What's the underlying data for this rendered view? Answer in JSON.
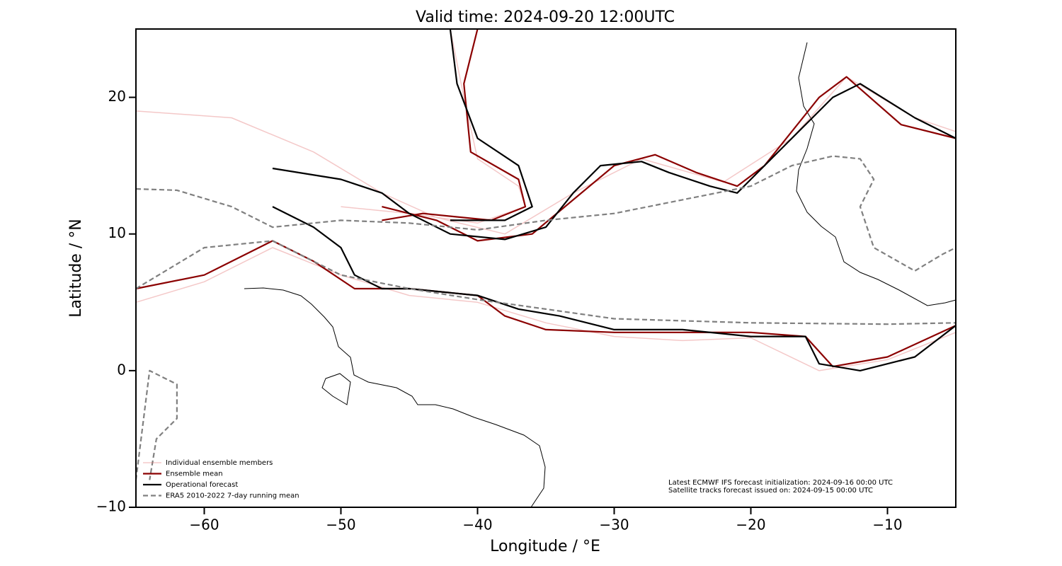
{
  "chart_data": {
    "type": "contour-map",
    "title": "Valid time: 2024-09-20 12:00UTC",
    "xlabel": "Longitude / °E",
    "ylabel": "Latitude / °N",
    "xlim": [
      -65,
      -5
    ],
    "ylim": [
      -10,
      25
    ],
    "xticks": [
      {
        "value": -60,
        "label": "−60"
      },
      {
        "value": -50,
        "label": "−50"
      },
      {
        "value": -40,
        "label": "−40"
      },
      {
        "value": -30,
        "label": "−30"
      },
      {
        "value": -20,
        "label": "−20"
      },
      {
        "value": -10,
        "label": "−10"
      }
    ],
    "yticks": [
      {
        "value": -10,
        "label": "−10"
      },
      0,
      10,
      20
    ],
    "legend_position": "lower left",
    "series": [
      {
        "name": "Individual ensemble members",
        "color": "#e06060",
        "style": "thin",
        "x": [
          -65,
          -60,
          -55,
          -50,
          -45,
          -40,
          -35,
          -30,
          -25,
          -20,
          -15,
          -10,
          -5,
          null,
          -65,
          -58,
          -52,
          -47,
          -43,
          -38,
          -33,
          -28,
          -22,
          -17,
          -13,
          -8,
          -5,
          null,
          -42,
          -41,
          -40,
          -37,
          -36.5,
          -40,
          -45,
          -50
        ],
        "y": [
          5,
          6.5,
          9,
          7,
          5.5,
          5,
          3.5,
          2.5,
          2.2,
          2.4,
          0,
          0.8,
          2.8,
          null,
          19,
          18.5,
          16,
          13,
          11.2,
          10,
          13,
          15.5,
          13.8,
          17,
          21.5,
          18.5,
          17.5,
          null,
          25,
          20,
          15.5,
          13.5,
          12,
          10.8,
          11.5,
          12
        ]
      },
      {
        "name": "Ensemble mean",
        "color": "#8b0000",
        "style": "solid",
        "x": [
          -65,
          -60,
          -55,
          -52,
          -49,
          -45,
          -40,
          -38,
          -35,
          -30,
          -25,
          -20,
          -16,
          -14,
          -10,
          -5,
          null,
          -47,
          -43,
          -40,
          -36,
          -33,
          -30,
          -27,
          -24,
          -21,
          -19,
          -15,
          -13,
          -9,
          -5,
          null,
          -40,
          -41,
          -40.5,
          -37,
          -36.5,
          -39,
          -44,
          -47
        ],
        "y": [
          6,
          7,
          9.5,
          8,
          6,
          6,
          5.5,
          4,
          3,
          2.8,
          2.8,
          2.8,
          2.5,
          0.3,
          1,
          3.3,
          null,
          12,
          11,
          9.5,
          10,
          12.5,
          15,
          15.8,
          14.5,
          13.5,
          15,
          20,
          21.5,
          18,
          17,
          null,
          25,
          21,
          16,
          14,
          12,
          11,
          11.5,
          11
        ]
      },
      {
        "name": "Operational forecast",
        "color": "#000000",
        "style": "solid",
        "x": [
          -55,
          -52,
          -50,
          -49,
          -47,
          -45,
          -40,
          -37,
          -34,
          -30,
          -25,
          -20,
          -16,
          -15,
          -12,
          -8,
          -5,
          null,
          -55,
          -50,
          -47,
          -45,
          -42,
          -38,
          -35,
          -33,
          -31,
          -28,
          -26,
          -23,
          -21,
          -19,
          -16,
          -14,
          -12,
          -8,
          -5,
          null,
          -42,
          -41.5,
          -40,
          -37,
          -36,
          -38,
          -42
        ],
        "y": [
          12,
          10.5,
          9,
          7,
          6,
          6,
          5.5,
          4.5,
          4,
          3,
          3,
          2.5,
          2.5,
          0.5,
          0,
          1,
          3.3,
          null,
          14.8,
          14,
          13,
          11.5,
          10,
          9.6,
          10.5,
          13,
          15,
          15.3,
          14.5,
          13.5,
          13,
          15,
          18,
          20,
          21,
          18.5,
          17,
          null,
          25,
          21,
          17,
          15,
          12,
          11,
          11
        ]
      },
      {
        "name": "ERA5 2010-2022 7-day running mean",
        "color": "#808080",
        "style": "dashed",
        "x": [
          -65,
          -62,
          -58,
          -55,
          -50,
          -45,
          -40,
          -35,
          -30,
          -25,
          -20,
          -17,
          -14,
          -12,
          -11,
          -12,
          -11,
          -8,
          -6,
          -5,
          null,
          -65,
          -60,
          -55,
          -50,
          -45,
          -40,
          -35,
          -30,
          -20,
          -10,
          -5,
          null,
          -65,
          -64,
          -62,
          -62,
          -63.5,
          -64
        ],
        "y": [
          13.3,
          13.2,
          12,
          10.5,
          11,
          10.8,
          10.3,
          11,
          11.5,
          12.5,
          13.5,
          15,
          15.7,
          15.5,
          14,
          12,
          9,
          7.3,
          8.5,
          9,
          null,
          6,
          9,
          9.5,
          7,
          6,
          5.2,
          4.5,
          3.8,
          3.5,
          3.4,
          3.5,
          null,
          -8,
          0,
          -1,
          -3.5,
          -5,
          -8
        ]
      }
    ],
    "annotations": [
      "Latest ECMWF IFS forecast initialization: 2024-09-16 00:00 UTC",
      "Satellite tracks forecast issued on: 2024-09-15 00:00 UTC"
    ]
  }
}
